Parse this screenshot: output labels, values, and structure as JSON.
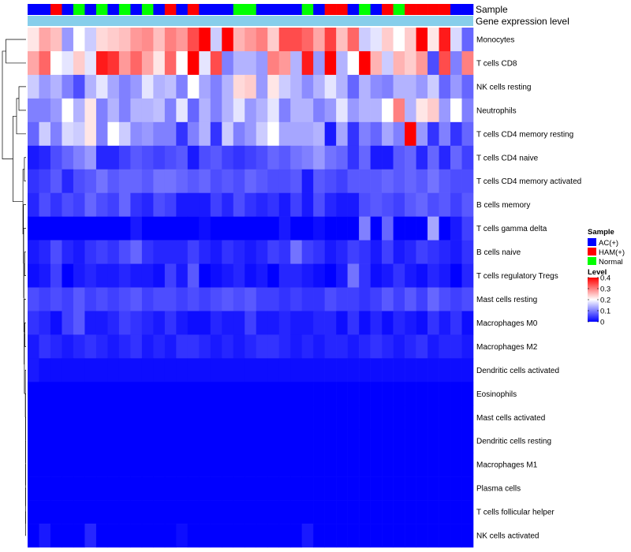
{
  "chart_data": {
    "type": "heatmap",
    "annotation_labels": [
      "Sample",
      "Gene expression level"
    ],
    "rows": [
      "Monocytes",
      "T cells CD8",
      "NK cells resting",
      "Neutrophils",
      "T cells CD4 memory resting",
      "T cells CD4 naive",
      "T cells CD4 memory activated",
      "B cells memory",
      "T cells gamma delta",
      "B cells naive",
      "T cells regulatory  Tregs",
      "Mast cells resting",
      "Macrophages M0",
      "Macrophages M2",
      "Dendritic cells activated",
      "Eosinophils",
      "Mast cells activated",
      "Dendritic cells resting",
      "Macrophages M1",
      "Plasma cells",
      "T cells follicular helper",
      "NK cells activated"
    ],
    "sample_groups": [
      "A",
      "A",
      "H",
      "A",
      "N",
      "A",
      "N",
      "A",
      "N",
      "A",
      "N",
      "A",
      "H",
      "A",
      "H",
      "A",
      "A",
      "A",
      "N",
      "N",
      "A",
      "A",
      "A",
      "A",
      "N",
      "A",
      "H",
      "H",
      "A",
      "N",
      "A",
      "H",
      "N",
      "H",
      "H",
      "H",
      "H",
      "A",
      "A"
    ],
    "values": [
      [
        0.22,
        0.27,
        0.25,
        0.12,
        0.2,
        0.16,
        0.23,
        0.24,
        0.25,
        0.28,
        0.29,
        0.25,
        0.3,
        0.28,
        0.34,
        0.4,
        0.16,
        0.42,
        0.26,
        0.28,
        0.3,
        0.24,
        0.34,
        0.34,
        0.32,
        0.27,
        0.35,
        0.25,
        0.32,
        0.16,
        0.18,
        0.24,
        0.2,
        0.24,
        0.4,
        0.22,
        0.38,
        0.17,
        0.08
      ],
      [
        0.27,
        0.32,
        0.2,
        0.18,
        0.24,
        0.18,
        0.38,
        0.36,
        0.28,
        0.32,
        0.27,
        0.22,
        0.32,
        0.2,
        0.4,
        0.18,
        0.34,
        0.1,
        0.14,
        0.14,
        0.12,
        0.3,
        0.28,
        0.14,
        0.38,
        0.12,
        0.4,
        0.14,
        0.2,
        0.4,
        0.26,
        0.16,
        0.26,
        0.24,
        0.28,
        0.06,
        0.34,
        0.1,
        0.3
      ],
      [
        0.16,
        0.12,
        0.14,
        0.1,
        0.06,
        0.14,
        0.18,
        0.13,
        0.1,
        0.12,
        0.18,
        0.14,
        0.15,
        0.1,
        0.2,
        0.13,
        0.1,
        0.14,
        0.23,
        0.24,
        0.12,
        0.22,
        0.16,
        0.14,
        0.11,
        0.14,
        0.18,
        0.14,
        0.08,
        0.14,
        0.11,
        0.1,
        0.14,
        0.14,
        0.12,
        0.16,
        0.08,
        0.12,
        0.08
      ],
      [
        0.1,
        0.1,
        0.12,
        0.2,
        0.14,
        0.22,
        0.1,
        0.14,
        0.1,
        0.14,
        0.14,
        0.15,
        0.1,
        0.18,
        0.08,
        0.14,
        0.1,
        0.14,
        0.18,
        0.12,
        0.14,
        0.18,
        0.1,
        0.14,
        0.14,
        0.1,
        0.12,
        0.18,
        0.12,
        0.14,
        0.14,
        0.2,
        0.3,
        0.14,
        0.22,
        0.24,
        0.12,
        0.2,
        0.1
      ],
      [
        0.08,
        0.16,
        0.1,
        0.17,
        0.16,
        0.22,
        0.1,
        0.2,
        0.16,
        0.11,
        0.12,
        0.1,
        0.1,
        0.04,
        0.1,
        0.14,
        0.04,
        0.16,
        0.1,
        0.12,
        0.16,
        0.2,
        0.13,
        0.13,
        0.13,
        0.14,
        0.02,
        0.13,
        0.04,
        0.1,
        0.08,
        0.13,
        0.1,
        0.4,
        0.12,
        0.04,
        0.1,
        0.04,
        0.08
      ],
      [
        0.02,
        0.03,
        0.06,
        0.08,
        0.1,
        0.12,
        0.03,
        0.03,
        0.05,
        0.07,
        0.06,
        0.05,
        0.06,
        0.07,
        0.02,
        0.06,
        0.07,
        0.05,
        0.04,
        0.05,
        0.06,
        0.08,
        0.07,
        0.09,
        0.1,
        0.12,
        0.09,
        0.08,
        0.04,
        0.08,
        0.02,
        0.02,
        0.07,
        0.08,
        0.03,
        0.08,
        0.03,
        0.08,
        0.05
      ],
      [
        0.04,
        0.05,
        0.07,
        0.03,
        0.06,
        0.07,
        0.09,
        0.07,
        0.08,
        0.08,
        0.07,
        0.09,
        0.09,
        0.08,
        0.07,
        0.08,
        0.06,
        0.07,
        0.06,
        0.08,
        0.07,
        0.06,
        0.06,
        0.07,
        0.02,
        0.07,
        0.06,
        0.05,
        0.07,
        0.07,
        0.07,
        0.08,
        0.07,
        0.08,
        0.07,
        0.09,
        0.07,
        0.06,
        0.06
      ],
      [
        0.03,
        0.06,
        0.04,
        0.06,
        0.05,
        0.08,
        0.06,
        0.05,
        0.08,
        0.04,
        0.03,
        0.06,
        0.05,
        0.02,
        0.02,
        0.02,
        0.05,
        0.03,
        0.06,
        0.04,
        0.03,
        0.04,
        0.02,
        0.05,
        0.02,
        0.06,
        0.03,
        0.02,
        0.02,
        0.06,
        0.07,
        0.06,
        0.05,
        0.07,
        0.08,
        0.06,
        0.07,
        0.05,
        0.07
      ],
      [
        0.0,
        0.0,
        0.0,
        0.0,
        0.0,
        0.0,
        0.0,
        0.0,
        0.0,
        0.02,
        0.0,
        0.0,
        0.0,
        0.0,
        0.0,
        0.01,
        0.0,
        0.0,
        0.0,
        0.0,
        0.0,
        0.0,
        0.02,
        0.0,
        0.0,
        0.01,
        0.0,
        0.0,
        0.0,
        0.1,
        0.0,
        0.08,
        0.0,
        0.0,
        0.0,
        0.13,
        0.0,
        0.02,
        0.05
      ],
      [
        0.02,
        0.03,
        0.06,
        0.03,
        0.02,
        0.04,
        0.05,
        0.04,
        0.06,
        0.08,
        0.04,
        0.03,
        0.03,
        0.03,
        0.05,
        0.03,
        0.02,
        0.04,
        0.03,
        0.02,
        0.03,
        0.05,
        0.04,
        0.09,
        0.05,
        0.04,
        0.02,
        0.03,
        0.05,
        0.04,
        0.02,
        0.05,
        0.02,
        0.03,
        0.05,
        0.04,
        0.03,
        0.02,
        0.04
      ],
      [
        0.01,
        0.02,
        0.05,
        0.0,
        0.02,
        0.03,
        0.02,
        0.02,
        0.03,
        0.02,
        0.02,
        0.01,
        0.05,
        0.02,
        0.07,
        0.0,
        0.01,
        0.02,
        0.03,
        0.01,
        0.02,
        0.0,
        0.03,
        0.03,
        0.02,
        0.01,
        0.0,
        0.02,
        0.09,
        0.04,
        0.01,
        0.02,
        0.04,
        0.02,
        0.01,
        0.03,
        0.02,
        0.0,
        0.03
      ],
      [
        0.06,
        0.05,
        0.06,
        0.05,
        0.07,
        0.05,
        0.06,
        0.05,
        0.06,
        0.07,
        0.05,
        0.06,
        0.06,
        0.05,
        0.06,
        0.05,
        0.06,
        0.07,
        0.06,
        0.07,
        0.05,
        0.05,
        0.04,
        0.05,
        0.04,
        0.04,
        0.06,
        0.05,
        0.05,
        0.04,
        0.05,
        0.07,
        0.05,
        0.07,
        0.05,
        0.08,
        0.06,
        0.05,
        0.06
      ],
      [
        0.04,
        0.03,
        0.01,
        0.05,
        0.07,
        0.02,
        0.02,
        0.03,
        0.05,
        0.04,
        0.03,
        0.02,
        0.04,
        0.02,
        0.01,
        0.01,
        0.03,
        0.02,
        0.02,
        0.05,
        0.02,
        0.02,
        0.03,
        0.02,
        0.02,
        0.03,
        0.03,
        0.01,
        0.04,
        0.01,
        0.03,
        0.01,
        0.03,
        0.02,
        0.01,
        0.04,
        0.02,
        0.04,
        0.01
      ],
      [
        0.02,
        0.04,
        0.03,
        0.02,
        0.03,
        0.04,
        0.03,
        0.02,
        0.03,
        0.04,
        0.02,
        0.03,
        0.02,
        0.04,
        0.04,
        0.03,
        0.02,
        0.03,
        0.02,
        0.03,
        0.04,
        0.04,
        0.03,
        0.02,
        0.03,
        0.02,
        0.03,
        0.03,
        0.02,
        0.03,
        0.04,
        0.03,
        0.02,
        0.03,
        0.04,
        0.02,
        0.03,
        0.03,
        0.02
      ],
      [
        0.02,
        0.01,
        0.01,
        0.01,
        0.01,
        0.01,
        0.01,
        0.01,
        0.01,
        0.01,
        0.01,
        0.01,
        0.01,
        0.01,
        0.01,
        0.01,
        0.01,
        0.01,
        0.01,
        0.01,
        0.01,
        0.01,
        0.01,
        0.01,
        0.01,
        0.01,
        0.01,
        0.01,
        0.01,
        0.01,
        0.01,
        0.01,
        0.01,
        0.01,
        0.01,
        0.01,
        0.01,
        0.01,
        0.01
      ],
      [
        0.0,
        0.0,
        0.0,
        0.0,
        0.0,
        0.0,
        0.0,
        0.0,
        0.0,
        0.0,
        0.0,
        0.0,
        0.0,
        0.0,
        0.0,
        0.0,
        0.0,
        0.0,
        0.0,
        0.0,
        0.0,
        0.0,
        0.0,
        0.0,
        0.0,
        0.0,
        0.0,
        0.0,
        0.0,
        0.0,
        0.0,
        0.0,
        0.0,
        0.0,
        0.0,
        0.0,
        0.0,
        0.0,
        0.0
      ],
      [
        0.0,
        0.0,
        0.0,
        0.0,
        0.0,
        0.0,
        0.0,
        0.0,
        0.0,
        0.0,
        0.0,
        0.0,
        0.0,
        0.0,
        0.0,
        0.0,
        0.0,
        0.0,
        0.0,
        0.0,
        0.0,
        0.0,
        0.0,
        0.0,
        0.0,
        0.0,
        0.0,
        0.0,
        0.0,
        0.0,
        0.0,
        0.0,
        0.0,
        0.0,
        0.0,
        0.0,
        0.0,
        0.0,
        0.0
      ],
      [
        0.0,
        0.0,
        0.0,
        0.0,
        0.0,
        0.0,
        0.0,
        0.0,
        0.0,
        0.0,
        0.0,
        0.0,
        0.0,
        0.0,
        0.0,
        0.0,
        0.0,
        0.0,
        0.0,
        0.0,
        0.0,
        0.0,
        0.0,
        0.0,
        0.0,
        0.0,
        0.0,
        0.0,
        0.0,
        0.0,
        0.0,
        0.0,
        0.0,
        0.0,
        0.0,
        0.0,
        0.0,
        0.0,
        0.0
      ],
      [
        0.0,
        0.0,
        0.0,
        0.0,
        0.0,
        0.0,
        0.0,
        0.0,
        0.0,
        0.0,
        0.0,
        0.0,
        0.0,
        0.0,
        0.0,
        0.0,
        0.0,
        0.0,
        0.0,
        0.0,
        0.0,
        0.0,
        0.0,
        0.0,
        0.0,
        0.0,
        0.0,
        0.0,
        0.0,
        0.0,
        0.0,
        0.0,
        0.0,
        0.0,
        0.0,
        0.0,
        0.0,
        0.0,
        0.0
      ],
      [
        0.0,
        0.0,
        0.0,
        0.0,
        0.0,
        0.0,
        0.0,
        0.0,
        0.0,
        0.0,
        0.0,
        0.0,
        0.0,
        0.0,
        0.0,
        0.0,
        0.0,
        0.0,
        0.0,
        0.0,
        0.0,
        0.0,
        0.0,
        0.0,
        0.0,
        0.0,
        0.0,
        0.0,
        0.0,
        0.0,
        0.0,
        0.0,
        0.0,
        0.0,
        0.0,
        0.0,
        0.0,
        0.0,
        0.0
      ],
      [
        0.0,
        0.0,
        0.0,
        0.0,
        0.0,
        0.0,
        0.0,
        0.0,
        0.0,
        0.0,
        0.0,
        0.0,
        0.0,
        0.0,
        0.0,
        0.0,
        0.0,
        0.0,
        0.0,
        0.0,
        0.0,
        0.0,
        0.0,
        0.0,
        0.0,
        0.0,
        0.0,
        0.0,
        0.0,
        0.0,
        0.0,
        0.0,
        0.0,
        0.0,
        0.0,
        0.0,
        0.0,
        0.0,
        0.0
      ],
      [
        0.0,
        0.02,
        0.0,
        0.0,
        0.0,
        0.03,
        0.0,
        0.0,
        0.0,
        0.0,
        0.0,
        0.0,
        0.0,
        0.01,
        0.0,
        0.0,
        0.0,
        0.0,
        0.0,
        0.0,
        0.0,
        0.0,
        0.0,
        0.0,
        0.02,
        0.0,
        0.0,
        0.0,
        0.0,
        0.0,
        0.0,
        0.0,
        0.0,
        0.0,
        0.0,
        0.0,
        0.0,
        0.0,
        0.0
      ]
    ],
    "sample_legend": {
      "title": "Sample",
      "entries": [
        {
          "key": "A",
          "label": "AC(+)",
          "color": "#0000ff"
        },
        {
          "key": "H",
          "label": "HAM(+)",
          "color": "#ff0000"
        },
        {
          "key": "N",
          "label": "Normal",
          "color": "#00ff00"
        }
      ]
    },
    "level_legend": {
      "title": "Level",
      "min": 0,
      "max": 0.4,
      "ticks": [
        0.4,
        0.3,
        0.2,
        0.1,
        0
      ],
      "tick_labels": [
        "0.4",
        "0.3",
        "0.2",
        "0.1",
        "0"
      ]
    },
    "colors": {
      "low": "#0000ff",
      "mid": "#ffffff",
      "high": "#ff0000",
      "expression_bar": "#87ceeb"
    },
    "legend_position": "right"
  }
}
